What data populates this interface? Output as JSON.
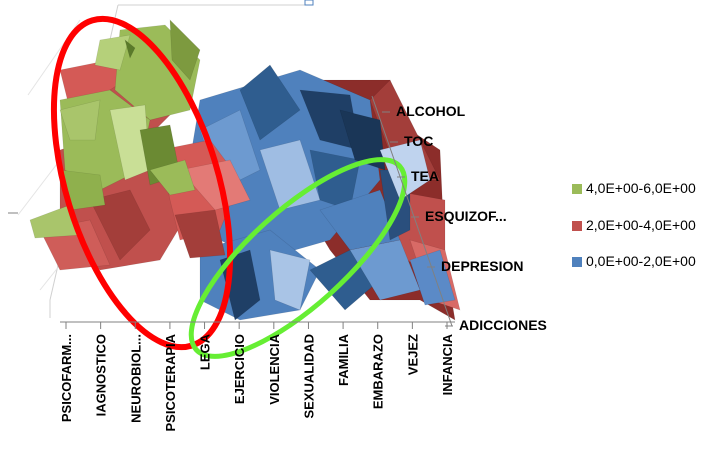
{
  "chart_data": {
    "type": "surface",
    "categories": [
      "PSICOFARM...",
      "IAGNOSTICO",
      "NEUROBIOL...",
      "PSICOTERAPIA",
      "LEGA",
      "EJERCICIO",
      "VIOLENCIA",
      "SEXUALIDAD",
      "FAMILIA",
      "EMBARAZO",
      "VEJEZ",
      "INFANCIA"
    ],
    "series": [
      {
        "name": "ALCOHOL"
      },
      {
        "name": "TOC"
      },
      {
        "name": "TEA"
      },
      {
        "name": "ESQUIZOF..."
      },
      {
        "name": "DEPRESION"
      },
      {
        "name": "ADICCIONES"
      }
    ],
    "bands": [
      {
        "label": "4,0E+00-6,0E+00",
        "color": "#9bbb59"
      },
      {
        "label": "2,0E+00-4,0E+00",
        "color": "#c0504d"
      },
      {
        "label": "0,0E+00-2,0E+00",
        "color": "#4f81bd"
      }
    ],
    "zlim": [
      0,
      6
    ],
    "legend_position": "right",
    "annotations": [
      {
        "shape": "ellipse",
        "color": "#ff0000"
      },
      {
        "shape": "ellipse",
        "color": "#66ee33"
      }
    ]
  }
}
